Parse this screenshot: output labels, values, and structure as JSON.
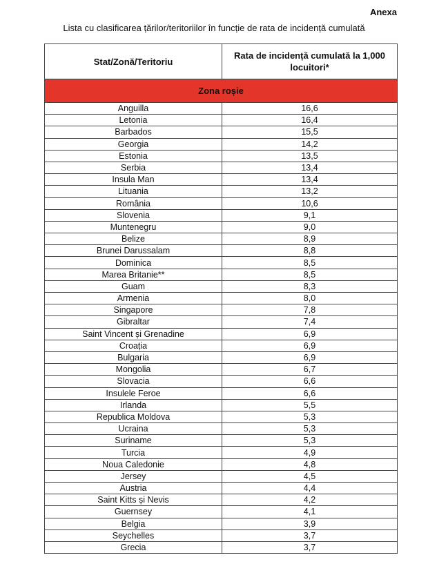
{
  "annex_label": "Anexa",
  "subtitle": "Lista cu clasificarea țărilor/teritoriilor în funcție de rata de incidență cumulată",
  "table": {
    "headers": [
      "Stat/Zonă/Teritoriu",
      "Rata de incidență cumulată la 1,000 locuitori*"
    ],
    "zone_label": "Zona roșie",
    "zone_color": "#e4352a",
    "rows": [
      [
        "Anguilla",
        "16,6"
      ],
      [
        "Letonia",
        "16,4"
      ],
      [
        "Barbados",
        "15,5"
      ],
      [
        "Georgia",
        "14,2"
      ],
      [
        "Estonia",
        "13,5"
      ],
      [
        "Serbia",
        "13,4"
      ],
      [
        "Insula Man",
        "13,4"
      ],
      [
        "Lituania",
        "13,2"
      ],
      [
        "România",
        "10,6"
      ],
      [
        "Slovenia",
        "9,1"
      ],
      [
        "Muntenegru",
        "9,0"
      ],
      [
        "Belize",
        "8,9"
      ],
      [
        "Brunei Darussalam",
        "8,8"
      ],
      [
        "Dominica",
        "8,5"
      ],
      [
        "Marea Britanie**",
        "8,5"
      ],
      [
        "Guam",
        "8,3"
      ],
      [
        "Armenia",
        "8,0"
      ],
      [
        "Singapore",
        "7,8"
      ],
      [
        "Gibraltar",
        "7,4"
      ],
      [
        "Saint Vincent și Grenadine",
        "6,9"
      ],
      [
        "Croația",
        "6,9"
      ],
      [
        "Bulgaria",
        "6,9"
      ],
      [
        "Mongolia",
        "6,7"
      ],
      [
        "Slovacia",
        "6,6"
      ],
      [
        "Insulele Feroe",
        "6,6"
      ],
      [
        "Irlanda",
        "5,5"
      ],
      [
        "Republica Moldova",
        "5,3"
      ],
      [
        "Ucraina",
        "5,3"
      ],
      [
        "Suriname",
        "5,3"
      ],
      [
        "Turcia",
        "4,9"
      ],
      [
        "Noua Caledonie",
        "4,8"
      ],
      [
        "Jersey",
        "4,5"
      ],
      [
        "Austria",
        "4,4"
      ],
      [
        "Saint Kitts și Nevis",
        "4,2"
      ],
      [
        "Guernsey",
        "4,1"
      ],
      [
        "Belgia",
        "3,9"
      ],
      [
        "Seychelles",
        "3,7"
      ],
      [
        "Grecia",
        "3,7"
      ]
    ]
  }
}
